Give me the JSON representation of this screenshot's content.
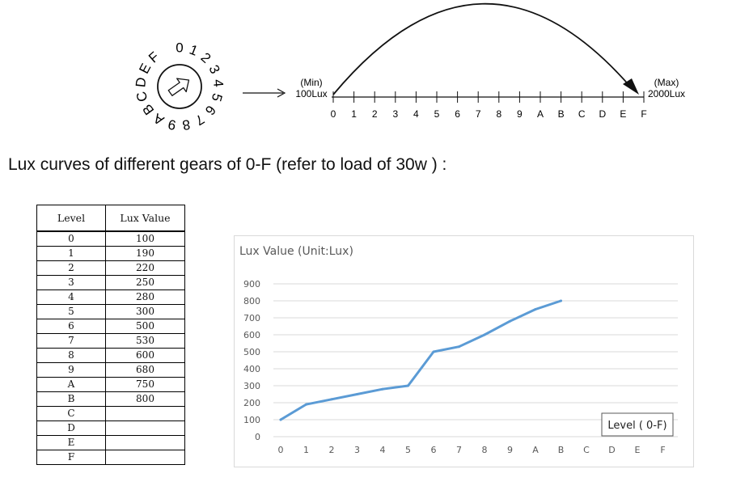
{
  "dial": {
    "ring_labels": [
      "0",
      "1",
      "2",
      "3",
      "4",
      "5",
      "6",
      "7",
      "8",
      "9",
      "A",
      "B",
      "C",
      "D",
      "E",
      "F"
    ]
  },
  "scale": {
    "min_label": "(Min)",
    "min_value": "100Lux",
    "max_label": "(Max)",
    "max_value": "2000Lux",
    "ticks": [
      "0",
      "1",
      "2",
      "3",
      "4",
      "5",
      "6",
      "7",
      "8",
      "9",
      "A",
      "B",
      "C",
      "D",
      "E",
      "F"
    ]
  },
  "heading": "Lux curves of different gears of 0-F (refer to load of 30w ) :",
  "table": {
    "headers": [
      "Level",
      "Lux Value"
    ],
    "rows": [
      [
        "0",
        "100"
      ],
      [
        "1",
        "190"
      ],
      [
        "2",
        "220"
      ],
      [
        "3",
        "250"
      ],
      [
        "4",
        "280"
      ],
      [
        "5",
        "300"
      ],
      [
        "6",
        "500"
      ],
      [
        "7",
        "530"
      ],
      [
        "8",
        "600"
      ],
      [
        "9",
        "680"
      ],
      [
        "A",
        "750"
      ],
      [
        "B",
        "800"
      ],
      [
        "C",
        ""
      ],
      [
        "D",
        ""
      ],
      [
        "E",
        ""
      ],
      [
        "F",
        ""
      ]
    ]
  },
  "chart_data": {
    "type": "line",
    "title": "Lux Value (Unit:Lux)",
    "xlabel": "Level ( 0-F)",
    "ylabel": "",
    "categories": [
      "0",
      "1",
      "2",
      "3",
      "4",
      "5",
      "6",
      "7",
      "8",
      "9",
      "A",
      "B",
      "C",
      "D",
      "E",
      "F"
    ],
    "series": [
      {
        "values": [
          100,
          190,
          220,
          250,
          280,
          300,
          500,
          530,
          600,
          680,
          750,
          800,
          null,
          null,
          null,
          null
        ]
      }
    ],
    "ylim": [
      0,
      900
    ],
    "yticks": [
      0,
      100,
      200,
      300,
      400,
      500,
      600,
      700,
      800,
      900
    ],
    "grid": true,
    "colors": {
      "line": "#5b9bd5",
      "grid": "#d9d9d9",
      "axis_text": "#595959"
    }
  }
}
